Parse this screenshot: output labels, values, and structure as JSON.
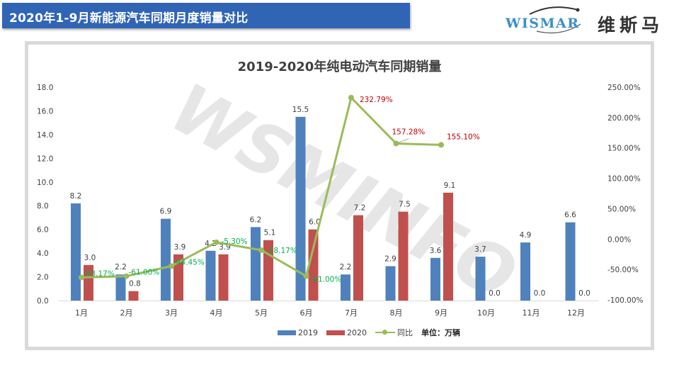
{
  "header": {
    "title": "2020年1-9月新能源汽车同期月度销量对比"
  },
  "logo": {
    "brand_en": "WISMAR",
    "brand_cn": "维斯马"
  },
  "watermark": "WSMINFO",
  "legend": {
    "series_2019": "2019",
    "series_2020": "2020",
    "series_yoy": "同比",
    "unit": "单位：万辆"
  },
  "colors": {
    "header_bg": "#3065b6",
    "bar_2019": "#4f81bd",
    "bar_2020": "#c0504d",
    "line_yoy": "#9bbb59",
    "label_negative": "#00b050",
    "label_positive": "#c00000",
    "frame": "#d9d9d9"
  },
  "chart_data": {
    "type": "bar",
    "title": "2019-2020年纯电动汽车同期销量",
    "xlabel": "",
    "ylabel": "单位：万辆",
    "ylabel_right": "同比",
    "categories": [
      "1月",
      "2月",
      "3月",
      "4月",
      "5月",
      "6月",
      "7月",
      "8月",
      "9月",
      "10月",
      "11月",
      "12月"
    ],
    "series": [
      {
        "name": "2019",
        "type": "bar",
        "axis": "left",
        "values": [
          8.2,
          2.2,
          6.9,
          4.2,
          6.2,
          15.5,
          2.2,
          2.9,
          3.6,
          3.7,
          4.9,
          6.6
        ]
      },
      {
        "name": "2020",
        "type": "bar",
        "axis": "left",
        "values": [
          3.0,
          0.8,
          3.9,
          3.9,
          5.1,
          6.0,
          7.2,
          7.5,
          9.1,
          0.0,
          0.0,
          0.0
        ]
      },
      {
        "name": "同比",
        "type": "line",
        "axis": "right",
        "unit": "%",
        "values": [
          -63.17,
          -61.0,
          -44.45,
          -5.3,
          -18.17,
          -61.0,
          232.79,
          157.28,
          155.1
        ],
        "labels": [
          "-63.17%",
          "-61.00%",
          "-44.45%",
          "-5.30%",
          "-18.17%",
          "-61.00%",
          "232.79%",
          "157.28%",
          "155.10%"
        ]
      }
    ],
    "ylim": [
      0,
      18
    ],
    "yticks": [
      "0.0",
      "2.0",
      "4.0",
      "6.0",
      "8.0",
      "10.0",
      "12.0",
      "14.0",
      "16.0",
      "18.0"
    ],
    "ylim_right": [
      -100,
      250
    ],
    "yticks_right": [
      "-100.00%",
      "-50.00%",
      "0.00%",
      "50.00%",
      "100.00%",
      "150.00%",
      "200.00%",
      "250.00%"
    ],
    "grid": false,
    "legend_position": "bottom"
  }
}
